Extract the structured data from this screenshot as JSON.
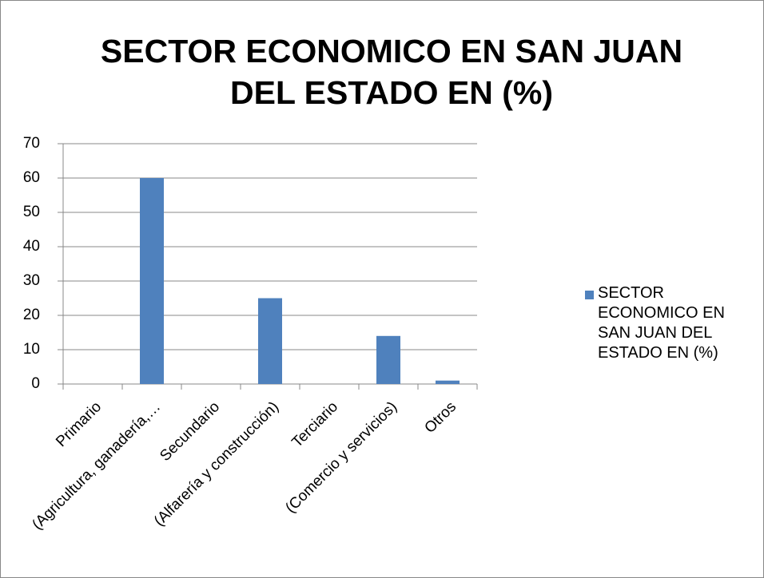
{
  "chart_data": {
    "type": "bar",
    "title": "SECTOR ECONOMICO EN SAN JUAN DEL ESTADO EN (%)",
    "categories": [
      "Primario",
      "(Agricultura, ganadería,…",
      "Secundario",
      "(Alfarería y construcción)",
      "Terciario",
      "(Comercio y servicios)",
      "Otros"
    ],
    "series": [
      {
        "name": "SECTOR ECONOMICO EN SAN JUAN DEL ESTADO EN (%)",
        "color": "#4f81bd",
        "values": [
          null,
          60,
          null,
          25,
          null,
          14,
          1
        ]
      }
    ],
    "ylim": [
      0,
      70
    ],
    "yticks": [
      0,
      10,
      20,
      30,
      40,
      50,
      60,
      70
    ],
    "grid": true,
    "legend": "right"
  }
}
